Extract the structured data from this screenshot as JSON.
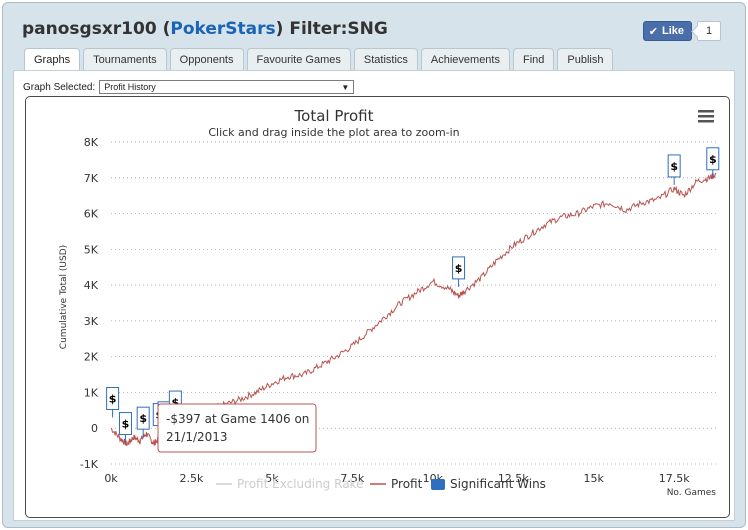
{
  "header": {
    "username": "panosgsxr100",
    "open_paren": "(",
    "site": "PokerStars",
    "close_paren": ")",
    "filter": "Filter:SNG"
  },
  "like": {
    "label": "Like",
    "count": "1",
    "icon": "check-icon"
  },
  "tabs": [
    {
      "label": "Graphs",
      "active": true
    },
    {
      "label": "Tournaments"
    },
    {
      "label": "Opponents"
    },
    {
      "label": "Favourite Games"
    },
    {
      "label": "Statistics"
    },
    {
      "label": "Achievements"
    },
    {
      "label": "Find"
    },
    {
      "label": "Publish"
    }
  ],
  "graph_selector": {
    "label": "Graph Selected:",
    "value": "Profit History"
  },
  "chart_data": {
    "type": "line",
    "title": "Total Profit",
    "subtitle": "Click and drag inside the plot area to zoom-in",
    "ylabel": "Cumulative Total (USD)",
    "xlabel": "No. Games",
    "ylim": [
      -1000,
      8000
    ],
    "xlim": [
      0,
      18800
    ],
    "y_ticks": [
      "8K",
      "7K",
      "6K",
      "5K",
      "4K",
      "3K",
      "2K",
      "1K",
      "0",
      "-1K"
    ],
    "x_ticks": [
      "0k",
      "2.5k",
      "5k",
      "7.5k",
      "10k",
      "12.5k",
      "15k",
      "17.5k"
    ],
    "grid": "horizontal dotted",
    "legend": {
      "placement": "bottom",
      "items": [
        {
          "name": "Profit Excluding Rake",
          "color": "#cccccc"
        },
        {
          "name": "Profit",
          "color": "#b85450"
        },
        {
          "name": "Significant Wins",
          "color": "#2f6fbf"
        }
      ]
    },
    "series": [
      {
        "name": "Profit",
        "color": "#b85450",
        "x": [
          0,
          300,
          500,
          700,
          900,
          1100,
          1300,
          1406,
          1600,
          1800,
          2000,
          2500,
          3000,
          3500,
          4000,
          4500,
          5000,
          5500,
          6000,
          6500,
          7000,
          7500,
          8000,
          8500,
          9000,
          9500,
          10000,
          10500,
          10800,
          11000,
          11500,
          12000,
          12500,
          13000,
          13500,
          14000,
          14500,
          15000,
          15500,
          16000,
          16500,
          17000,
          17500,
          17800,
          18200,
          18600,
          18800
        ],
        "y": [
          0,
          -300,
          -450,
          -250,
          -350,
          -150,
          -400,
          -397,
          -50,
          200,
          400,
          450,
          500,
          650,
          800,
          1000,
          1250,
          1450,
          1500,
          1750,
          2000,
          2300,
          2700,
          3100,
          3500,
          3800,
          4100,
          3900,
          3700,
          3850,
          4200,
          4700,
          5100,
          5400,
          5700,
          5900,
          6000,
          6200,
          6300,
          6100,
          6300,
          6400,
          6700,
          6500,
          6900,
          7000,
          7100
        ]
      }
    ],
    "significant_wins": [
      {
        "x": 50,
        "y": 300,
        "label": "$"
      },
      {
        "x": 450,
        "y": -400,
        "label": "$"
      },
      {
        "x": 1000,
        "y": -250,
        "label": "$"
      },
      {
        "x": 1500,
        "y": -150,
        "label": "$"
      },
      {
        "x": 1650,
        "y": -100,
        "label": "$"
      },
      {
        "x": 2000,
        "y": 200,
        "label": "$"
      },
      {
        "x": 10800,
        "y": 3950,
        "label": "$"
      },
      {
        "x": 17500,
        "y": 6800,
        "label": "$"
      },
      {
        "x": 18700,
        "y": 7000,
        "label": "$"
      }
    ],
    "tooltip": {
      "line1": "-$397 at Game 1406 on",
      "line2": "21/1/2013",
      "x": 1406,
      "y": -397
    }
  }
}
